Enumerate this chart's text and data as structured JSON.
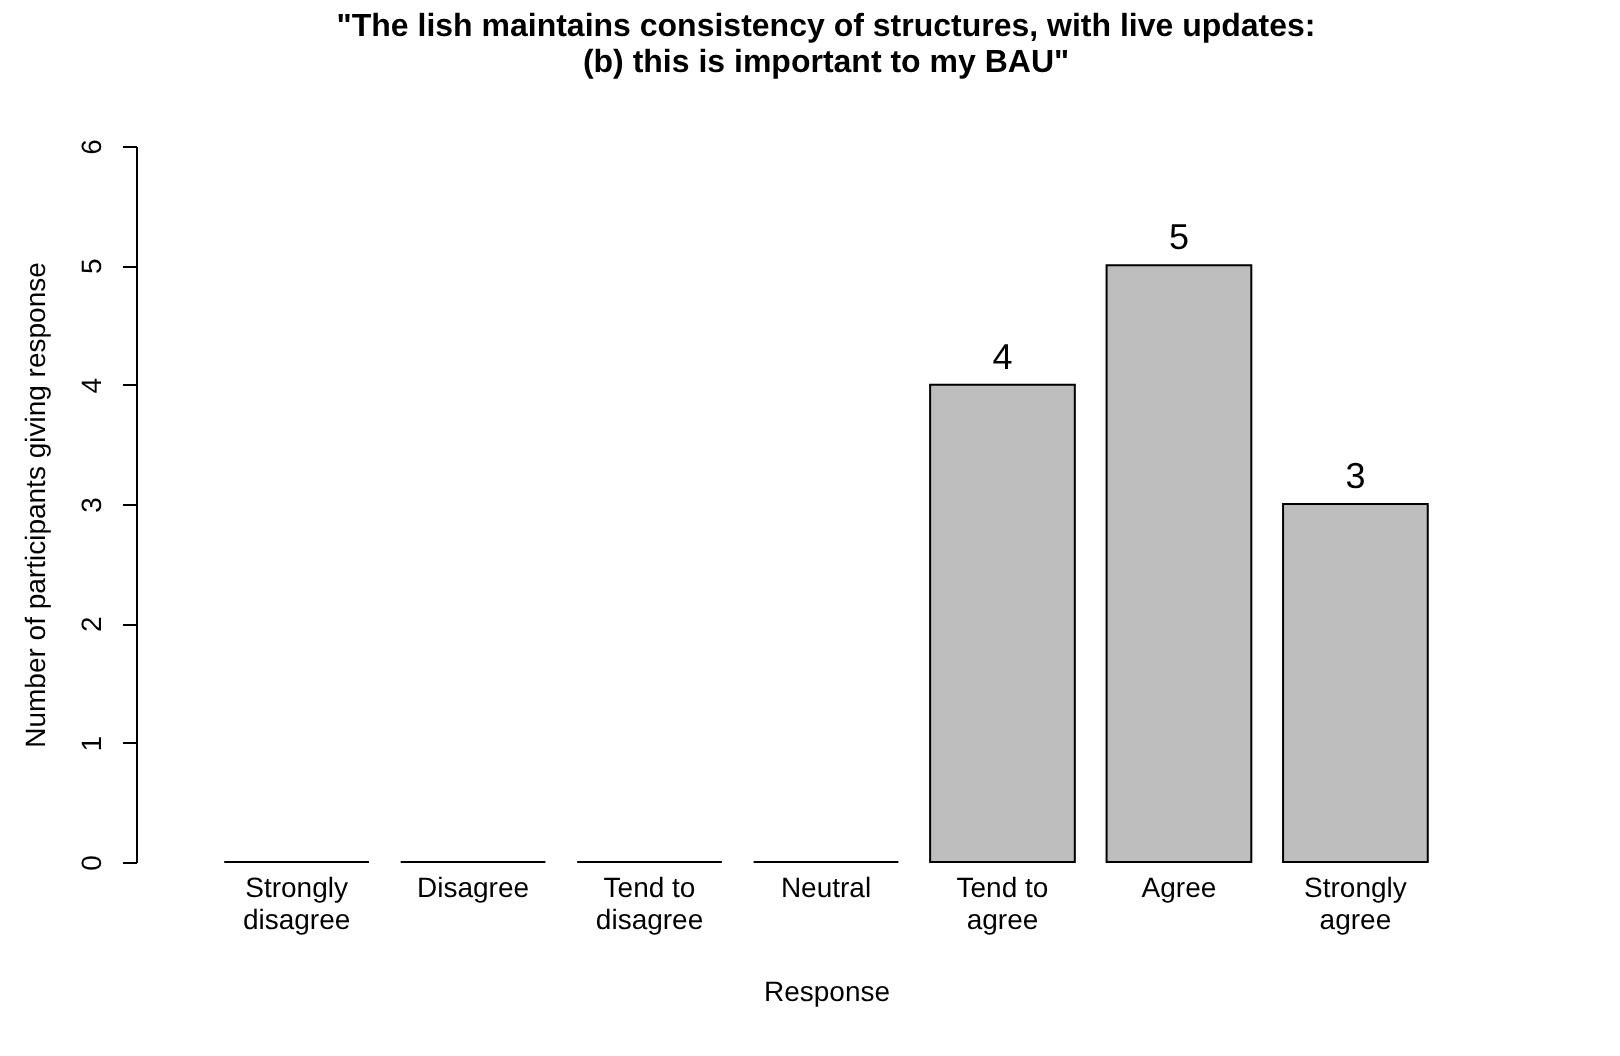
{
  "chart_data": {
    "type": "bar",
    "title": "\"The lish maintains consistency of structures, with live updates:\n(b) this is important to my BAU\"",
    "xlabel": "Response",
    "ylabel": "Number of participants giving response",
    "categories": [
      "Strongly disagree",
      "Disagree",
      "Tend to disagree",
      "Neutral",
      "Tend to agree",
      "Agree",
      "Strongly agree"
    ],
    "values": [
      0,
      0,
      0,
      0,
      4,
      5,
      3
    ],
    "value_labels": [
      null,
      null,
      null,
      null,
      "4",
      "5",
      "3"
    ],
    "color": "#bebebe",
    "ylim": [
      0,
      6
    ],
    "yticks": [
      0,
      1,
      2,
      3,
      4,
      5,
      6
    ],
    "grid": false
  }
}
